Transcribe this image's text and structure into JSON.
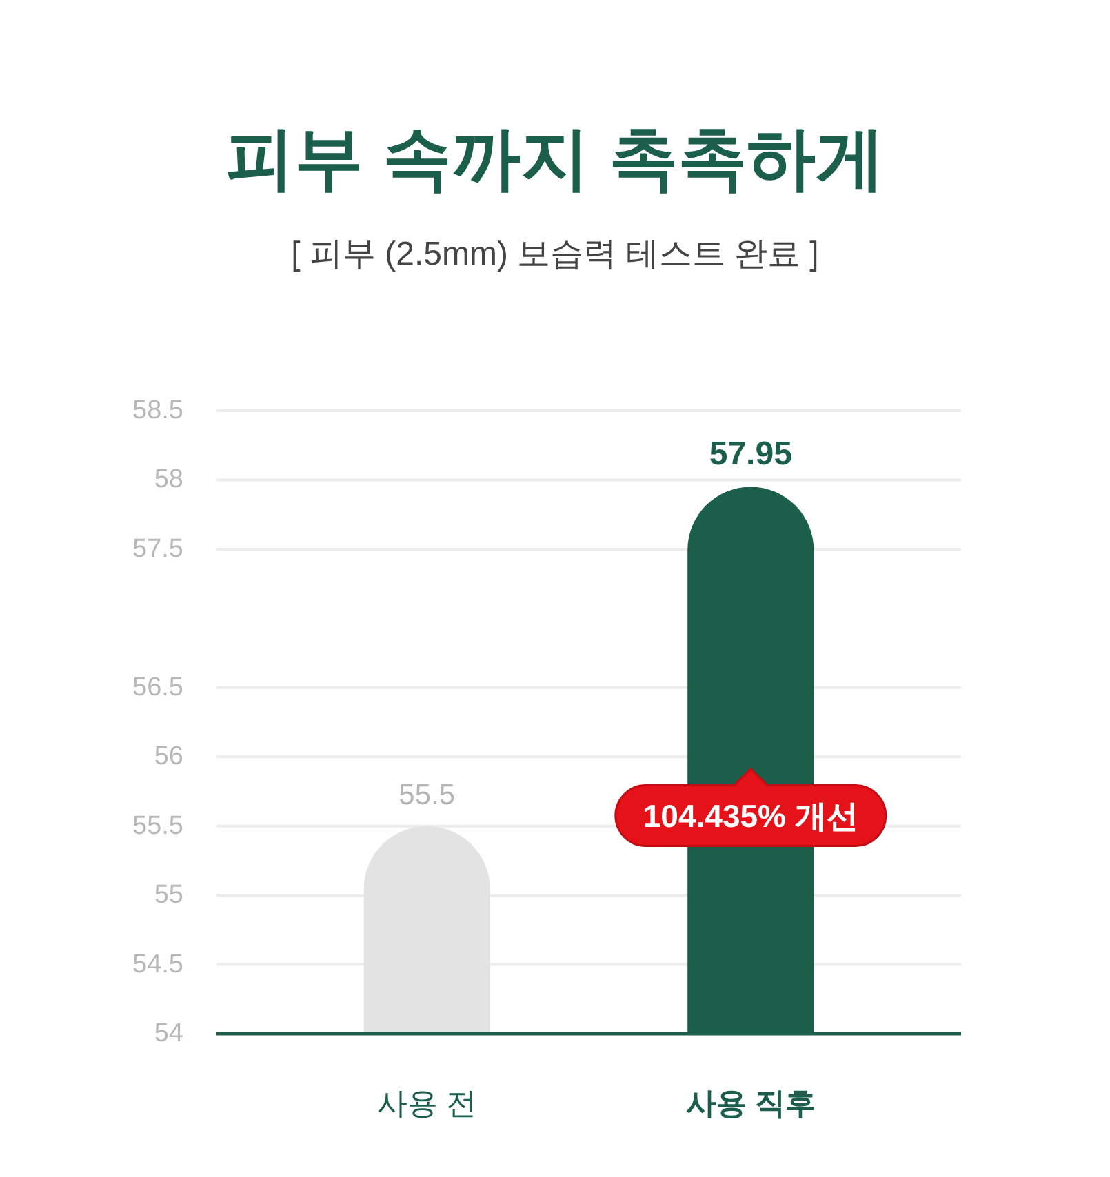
{
  "chart_data": {
    "type": "bar",
    "title": "피부 속까지 촉촉하게",
    "subtitle": "[ 피부 (2.5mm) 보습력 테스트 완료 ]",
    "categories": [
      "사용 전",
      "사용 직후"
    ],
    "values": [
      55.5,
      57.95
    ],
    "colors": [
      "#e3e3e3",
      "#1b5e4a"
    ],
    "ylim": [
      54,
      58.5
    ],
    "yticks": [
      54,
      54.5,
      55,
      55.5,
      56,
      56.5,
      57.5,
      58,
      58.5
    ],
    "grid": "y",
    "data_labels": true,
    "annotations": [
      "104.435% 개선"
    ]
  }
}
